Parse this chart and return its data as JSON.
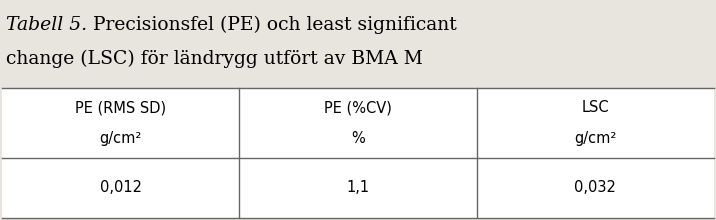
{
  "title_italic": "Tabell 5.",
  "title_line1_normal": " Precisionsfel (PE) och least significant",
  "title_line2": "change (LSC) för ländrygg utfört av BMA M",
  "col_headers": [
    "PE (RMS SD)",
    "PE (%CV)",
    "LSC"
  ],
  "col_subheaders": [
    "g/cm²",
    "%",
    "g/cm²"
  ],
  "data_row": [
    "0,012",
    "1,1",
    "0,032"
  ],
  "bg_color": "#e8e4de",
  "table_bg": "#ffffff",
  "border_color": "#666666",
  "header_fontsize": 10.5,
  "data_fontsize": 10.5,
  "title_fontsize": 13.5
}
